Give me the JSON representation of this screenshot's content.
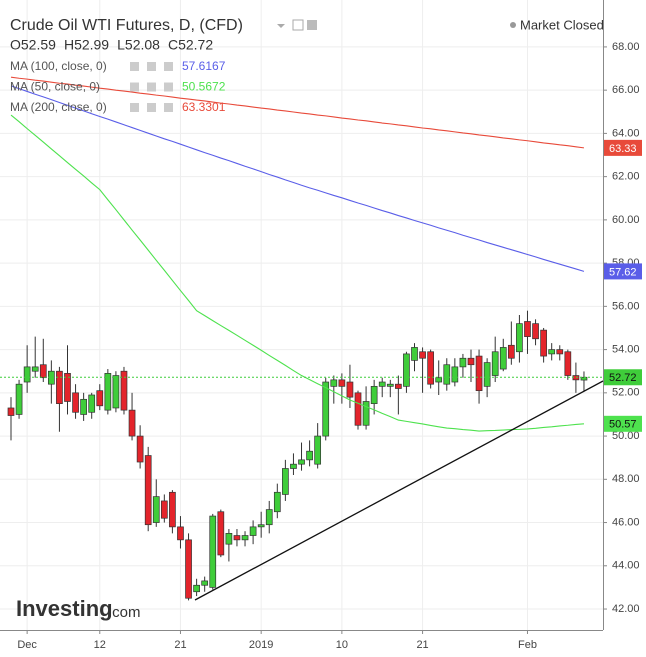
{
  "chart_data": {
    "type": "candlestick",
    "title": "Crude Oil WTI Futures, D, (CFD)",
    "status": "Market Closed",
    "brand": "Investing",
    "brand_suffix": ".com",
    "ohlc_letters": [
      "O",
      "H",
      "L",
      "C"
    ],
    "categories": [
      null,
      null,
      "Dec",
      null,
      null,
      null,
      null,
      null,
      null,
      null,
      null,
      "12",
      null,
      null,
      null,
      null,
      null,
      null,
      null,
      null,
      null,
      "21",
      null,
      null,
      null,
      null,
      null,
      null,
      null,
      null,
      null,
      "2019",
      null,
      null,
      null,
      null,
      null,
      null,
      null,
      null,
      null,
      "10",
      null,
      null,
      null,
      null,
      null,
      null,
      null,
      null,
      null,
      "21",
      null,
      null,
      null,
      null,
      null,
      null,
      null,
      null,
      null,
      null,
      null,
      null,
      "Feb",
      null,
      null,
      null,
      null,
      null,
      null,
      null
    ],
    "open": [
      51.3,
      51.0,
      52.5,
      53.0,
      53.3,
      52.4,
      53.0,
      52.9,
      52.0,
      51.0,
      51.1,
      52.1,
      51.2,
      51.3,
      53.0,
      51.2,
      50.0,
      49.1,
      46.0,
      47.0,
      47.4,
      45.8,
      45.2,
      42.8,
      43.1,
      43.0,
      46.5,
      45.0,
      45.4,
      45.2,
      45.4,
      45.8,
      45.9,
      46.5,
      47.3,
      48.5,
      48.7,
      48.9,
      48.7,
      50.0,
      52.3,
      52.6,
      52.5,
      52.0,
      50.5,
      51.5,
      52.3,
      52.3,
      52.4,
      52.3,
      53.5,
      53.9,
      53.9,
      52.5,
      52.4,
      52.5,
      53.2,
      53.6,
      53.7,
      52.3,
      52.8,
      53.1,
      54.2,
      53.9,
      55.3,
      55.2,
      54.9,
      53.8,
      54.0,
      53.9,
      52.8,
      52.59
    ],
    "high": [
      51.8,
      52.6,
      54.2,
      54.6,
      54.5,
      53.5,
      53.2,
      54.2,
      52.4,
      52.0,
      52.0,
      52.4,
      53.1,
      53.0,
      53.2,
      52.0,
      50.5,
      49.5,
      48.0,
      47.3,
      47.5,
      46.3,
      45.5,
      43.4,
      43.5,
      46.4,
      46.6,
      45.7,
      45.7,
      45.6,
      46.1,
      46.5,
      47.0,
      47.8,
      48.9,
      49.2,
      49.7,
      49.8,
      50.6,
      52.7,
      52.8,
      52.9,
      53.3,
      52.1,
      52.3,
      52.6,
      52.7,
      52.6,
      52.8,
      53.9,
      54.3,
      54.1,
      54.0,
      53.5,
      53.6,
      53.6,
      53.8,
      54.0,
      54.0,
      53.6,
      54.6,
      54.5,
      55.3,
      55.6,
      55.8,
      55.4,
      55.0,
      54.3,
      54.2,
      54.0,
      53.4,
      52.99
    ],
    "low": [
      49.8,
      50.8,
      52.0,
      52.7,
      52.5,
      51.5,
      50.2,
      51.0,
      50.8,
      50.7,
      50.8,
      51.2,
      51.0,
      51.1,
      51.0,
      49.8,
      48.5,
      45.6,
      45.8,
      46.0,
      45.5,
      44.8,
      42.4,
      42.6,
      42.8,
      42.9,
      44.4,
      44.2,
      44.9,
      44.9,
      45.0,
      45.3,
      45.5,
      46.2,
      47.0,
      48.2,
      48.4,
      48.6,
      48.5,
      49.8,
      51.5,
      51.5,
      51.3,
      50.3,
      50.3,
      51.0,
      51.8,
      51.8,
      51.0,
      52.0,
      53.0,
      52.0,
      52.2,
      51.9,
      52.1,
      52.3,
      52.7,
      52.5,
      51.5,
      51.8,
      52.5,
      53.0,
      53.3,
      53.4,
      53.8,
      54.2,
      53.4,
      53.5,
      53.5,
      52.6,
      52.0,
      52.08
    ],
    "close": [
      50.95,
      52.4,
      53.2,
      53.2,
      52.7,
      53.0,
      51.5,
      51.6,
      51.1,
      51.7,
      51.9,
      51.4,
      52.9,
      52.8,
      51.2,
      50.0,
      48.8,
      45.9,
      47.2,
      46.2,
      45.8,
      45.2,
      42.5,
      43.1,
      43.3,
      46.3,
      44.5,
      45.5,
      45.2,
      45.4,
      45.8,
      45.9,
      46.6,
      47.4,
      48.5,
      48.7,
      48.9,
      49.3,
      50.0,
      52.5,
      52.6,
      52.3,
      51.8,
      50.5,
      51.6,
      52.3,
      52.5,
      52.4,
      52.2,
      53.8,
      54.1,
      53.6,
      52.4,
      52.7,
      53.3,
      53.2,
      53.6,
      53.3,
      52.1,
      53.4,
      53.9,
      54.1,
      53.6,
      55.2,
      54.6,
      54.5,
      53.7,
      54.0,
      53.8,
      52.8,
      52.6,
      52.72
    ],
    "up_color": "#3fcd3a",
    "down_color": "#e3242b",
    "last_color": "#3fcd3a",
    "series": [
      {
        "name": "MA (100, close, 0)",
        "color": "#5a5ee8",
        "tag_label": "57.62",
        "values": [
          66.2,
          66.07,
          65.94,
          65.81,
          65.69,
          65.56,
          65.43,
          65.3,
          65.17,
          65.04,
          64.91,
          64.78,
          64.66,
          64.53,
          64.4,
          64.27,
          64.14,
          64.01,
          63.88,
          63.75,
          63.63,
          63.5,
          63.37,
          63.24,
          63.11,
          62.99,
          62.86,
          62.74,
          62.61,
          62.48,
          62.36,
          62.23,
          62.1,
          61.98,
          61.85,
          61.73,
          61.6,
          61.48,
          61.37,
          61.25,
          61.13,
          61.02,
          60.9,
          60.78,
          60.67,
          60.55,
          60.43,
          60.32,
          60.2,
          60.09,
          59.97,
          59.86,
          59.75,
          59.63,
          59.52,
          59.41,
          59.29,
          59.18,
          59.07,
          58.95,
          58.84,
          58.73,
          58.62,
          58.51,
          58.4,
          58.29,
          58.17,
          58.06,
          57.95,
          57.84,
          57.73,
          57.6167
        ]
      },
      {
        "name": "MA (50, close, 0)",
        "color": "#4ee24e",
        "tag_label": "50.57",
        "values": [
          64.85,
          64.54,
          64.22,
          63.91,
          63.6,
          63.28,
          62.97,
          62.65,
          62.34,
          62.03,
          61.71,
          61.4,
          60.93,
          60.47,
          60.0,
          59.53,
          59.07,
          58.6,
          58.13,
          57.67,
          57.2,
          56.73,
          56.27,
          55.8,
          55.57,
          55.34,
          55.11,
          54.89,
          54.66,
          54.43,
          54.2,
          53.97,
          53.73,
          53.5,
          53.27,
          53.03,
          52.8,
          52.61,
          52.42,
          52.24,
          52.05,
          51.86,
          51.67,
          51.52,
          51.36,
          51.21,
          51.05,
          50.9,
          50.74,
          50.68,
          50.62,
          50.56,
          50.49,
          50.43,
          50.37,
          50.34,
          50.3,
          50.27,
          50.23,
          50.25,
          50.26,
          50.28,
          50.3,
          50.31,
          50.33,
          50.36,
          50.4,
          50.43,
          50.47,
          50.5,
          50.54,
          50.5672
        ]
      },
      {
        "name": "MA (200, close, 0)",
        "color": "#e84a3a",
        "tag_label": "63.33",
        "values": [
          66.6,
          66.55,
          66.51,
          66.46,
          66.42,
          66.37,
          66.32,
          66.28,
          66.23,
          66.19,
          66.14,
          66.09,
          66.05,
          66.0,
          65.96,
          65.91,
          65.86,
          65.82,
          65.77,
          65.73,
          65.68,
          65.63,
          65.59,
          65.54,
          65.5,
          65.45,
          65.4,
          65.36,
          65.31,
          65.27,
          65.22,
          65.17,
          65.13,
          65.08,
          65.04,
          64.99,
          64.94,
          64.9,
          64.85,
          64.81,
          64.76,
          64.71,
          64.67,
          64.62,
          64.58,
          64.53,
          64.48,
          64.44,
          64.39,
          64.35,
          64.3,
          64.25,
          64.21,
          64.16,
          64.12,
          64.07,
          64.02,
          63.98,
          63.93,
          63.89,
          63.84,
          63.79,
          63.75,
          63.7,
          63.66,
          63.61,
          63.56,
          63.52,
          63.47,
          63.43,
          63.38,
          63.3301
        ]
      }
    ],
    "ylim": [
      41.03,
      69.8
    ],
    "yticks": [
      {
        "value": 42,
        "label": "42.00"
      },
      {
        "value": 44,
        "label": "44.00"
      },
      {
        "value": 46,
        "label": "46.00"
      },
      {
        "value": 48,
        "label": "48.00"
      },
      {
        "value": 50,
        "label": "50.00"
      },
      {
        "value": 52,
        "label": "52.00"
      },
      {
        "value": 54,
        "label": "54.00"
      },
      {
        "value": 56,
        "label": "56.00"
      },
      {
        "value": 58,
        "label": "58.00"
      },
      {
        "value": 60,
        "label": "60.00"
      },
      {
        "value": 62,
        "label": "62.00"
      },
      {
        "value": 64,
        "label": "64.00"
      },
      {
        "value": 66,
        "label": "66.00"
      },
      {
        "value": 68,
        "label": "68.00"
      }
    ],
    "grid": true
  }
}
